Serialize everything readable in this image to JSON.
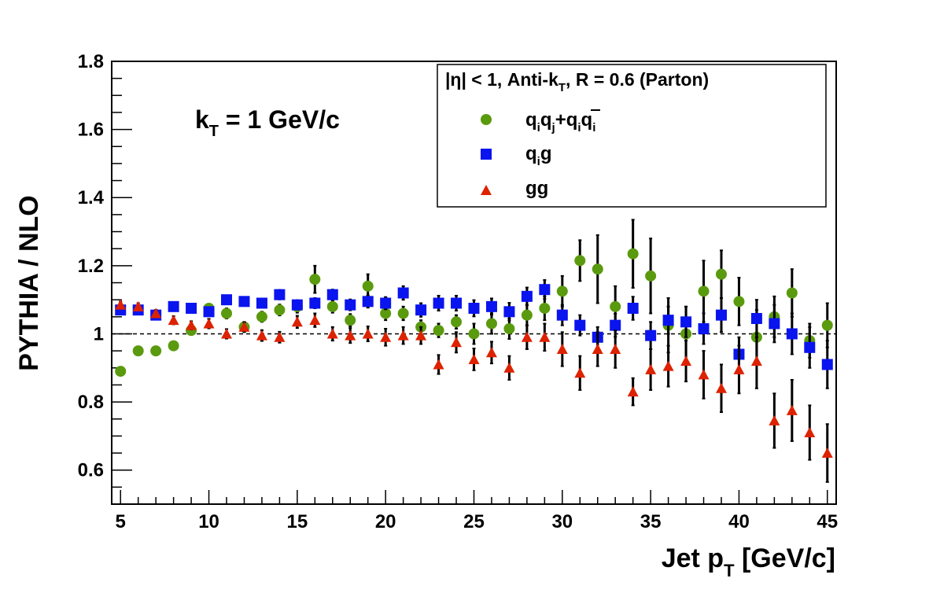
{
  "chart_data": {
    "type": "scatter",
    "xlabel_main": "Jet p",
    "xlabel_sub": "T",
    "xlabel_tail": " [GeV/c]",
    "ylabel": "PYTHIA / NLO",
    "xlim": [
      4.5,
      45.5
    ],
    "ylim": [
      0.5,
      1.8
    ],
    "xticks": [
      5,
      10,
      15,
      20,
      25,
      30,
      35,
      40,
      45
    ],
    "yticks": [
      "0.6",
      "0.8",
      "1",
      "1.2",
      "1.4",
      "1.6",
      "1.8"
    ],
    "ytick_values": [
      0.6,
      0.8,
      1.0,
      1.2,
      1.4,
      1.6,
      1.8
    ],
    "reference_line": 1.0,
    "annotation": {
      "main": "k",
      "sub": "T",
      "tail": " = 1 GeV/c"
    },
    "legend_header": {
      "part1": "|η| < 1, Anti-k",
      "sub": "T",
      "part2": ", R = 0.6 (Parton)"
    },
    "legend": [
      "q_i q_j + q_i q̄_i",
      "q_i g",
      "gg"
    ],
    "x": [
      5,
      6,
      7,
      8,
      9,
      10,
      11,
      12,
      13,
      14,
      15,
      16,
      17,
      18,
      19,
      20,
      21,
      22,
      23,
      24,
      25,
      26,
      27,
      28,
      29,
      30,
      31,
      32,
      33,
      34,
      35,
      36,
      37,
      38,
      39,
      40,
      41,
      42,
      43,
      44,
      45
    ],
    "series": [
      {
        "name": "q_i q_j + q_i q̄_i",
        "marker": "circle",
        "color": "#5a9a0e",
        "values": [
          0.89,
          0.95,
          0.95,
          0.965,
          1.01,
          1.075,
          1.06,
          1.02,
          1.05,
          1.07,
          1.08,
          1.16,
          1.08,
          1.04,
          1.14,
          1.06,
          1.06,
          1.02,
          1.01,
          1.035,
          1.0,
          1.03,
          1.015,
          1.055,
          1.075,
          1.125,
          1.215,
          1.19,
          1.08,
          1.235,
          1.17,
          1.025,
          1.0,
          1.125,
          1.175,
          1.095,
          0.99,
          1.05,
          1.12,
          0.98,
          1.025
        ],
        "errors": [
          0.012,
          0.012,
          0.012,
          0.012,
          0.012,
          0.013,
          0.015,
          0.015,
          0.015,
          0.016,
          0.018,
          0.04,
          0.018,
          0.018,
          0.035,
          0.02,
          0.02,
          0.02,
          0.02,
          0.02,
          0.03,
          0.03,
          0.03,
          0.03,
          0.035,
          0.045,
          0.06,
          0.1,
          0.06,
          0.1,
          0.11,
          0.08,
          0.08,
          0.09,
          0.07,
          0.07,
          0.08,
          0.06,
          0.07,
          0.05,
          0.065
        ]
      },
      {
        "name": "q_i g",
        "marker": "square",
        "color": "#0a14ee",
        "values": [
          1.07,
          1.07,
          1.055,
          1.08,
          1.075,
          1.065,
          1.1,
          1.095,
          1.09,
          1.115,
          1.085,
          1.09,
          1.115,
          1.085,
          1.095,
          1.09,
          1.12,
          1.07,
          1.09,
          1.09,
          1.075,
          1.08,
          1.065,
          1.11,
          1.13,
          1.055,
          1.025,
          0.99,
          1.025,
          1.075,
          0.995,
          1.04,
          1.035,
          1.015,
          1.055,
          0.94,
          1.045,
          1.03,
          1.0,
          0.96,
          0.91
        ],
        "errors": [
          0.01,
          0.01,
          0.01,
          0.01,
          0.01,
          0.012,
          0.012,
          0.012,
          0.012,
          0.014,
          0.014,
          0.015,
          0.015,
          0.016,
          0.018,
          0.018,
          0.02,
          0.02,
          0.022,
          0.022,
          0.024,
          0.024,
          0.026,
          0.026,
          0.028,
          0.03,
          0.03,
          0.03,
          0.034,
          0.034,
          0.04,
          0.04,
          0.045,
          0.045,
          0.05,
          0.05,
          0.055,
          0.055,
          0.06,
          0.06,
          0.07
        ]
      },
      {
        "name": "gg",
        "marker": "triangle",
        "color": "#dd2200",
        "values": [
          1.085,
          1.08,
          1.06,
          1.04,
          1.025,
          1.03,
          1.0,
          1.02,
          0.995,
          0.99,
          1.035,
          1.04,
          1.0,
          0.995,
          1.0,
          0.99,
          0.995,
          0.995,
          0.91,
          0.975,
          0.925,
          0.945,
          0.9,
          0.99,
          0.99,
          0.955,
          0.885,
          0.955,
          0.955,
          0.83,
          0.895,
          0.905,
          0.92,
          0.88,
          0.84,
          0.895,
          0.92,
          0.745,
          0.775,
          0.71,
          0.65
        ],
        "errors": [
          0.01,
          0.01,
          0.01,
          0.012,
          0.012,
          0.014,
          0.014,
          0.014,
          0.016,
          0.016,
          0.018,
          0.02,
          0.02,
          0.022,
          0.022,
          0.025,
          0.025,
          0.025,
          0.028,
          0.03,
          0.032,
          0.032,
          0.035,
          0.035,
          0.04,
          0.05,
          0.05,
          0.05,
          0.055,
          0.04,
          0.06,
          0.06,
          0.06,
          0.07,
          0.07,
          0.07,
          0.08,
          0.08,
          0.09,
          0.08,
          0.085
        ]
      }
    ]
  }
}
